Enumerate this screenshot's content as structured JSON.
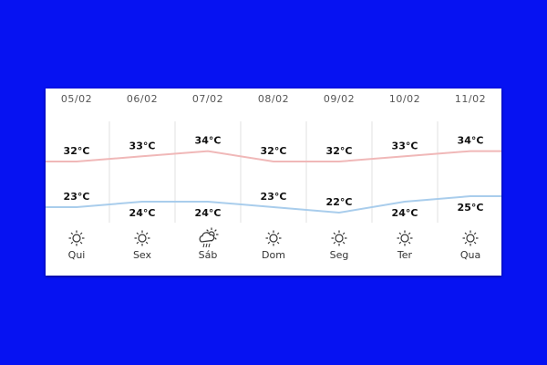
{
  "forecast": {
    "days": [
      {
        "date": "05/02",
        "weekday": "Qui",
        "high": 32,
        "low": 23,
        "high_label": "32°C",
        "low_label": "23°C",
        "icon": "sun-icon"
      },
      {
        "date": "06/02",
        "weekday": "Sex",
        "high": 33,
        "low": 24,
        "high_label": "33°C",
        "low_label": "24°C",
        "icon": "sun-icon"
      },
      {
        "date": "07/02",
        "weekday": "Sáb",
        "high": 34,
        "low": 24,
        "high_label": "34°C",
        "low_label": "24°C",
        "icon": "sun-rain-cloud-icon"
      },
      {
        "date": "08/02",
        "weekday": "Dom",
        "high": 32,
        "low": 23,
        "high_label": "32°C",
        "low_label": "23°C",
        "icon": "sun-icon"
      },
      {
        "date": "09/02",
        "weekday": "Seg",
        "high": 32,
        "low": 22,
        "high_label": "32°C",
        "low_label": "22°C",
        "icon": "sun-icon"
      },
      {
        "date": "10/02",
        "weekday": "Ter",
        "high": 33,
        "low": 24,
        "high_label": "33°C",
        "low_label": "24°C",
        "icon": "sun-icon"
      },
      {
        "date": "11/02",
        "weekday": "Qua",
        "high": 34,
        "low": 25,
        "high_label": "34°C",
        "low_label": "25°C",
        "icon": "sun-icon"
      }
    ]
  },
  "colors": {
    "background": "#0612f2",
    "high_line": "#f0b8b8",
    "low_line": "#a9cdec",
    "divider": "#e2e2e2"
  }
}
